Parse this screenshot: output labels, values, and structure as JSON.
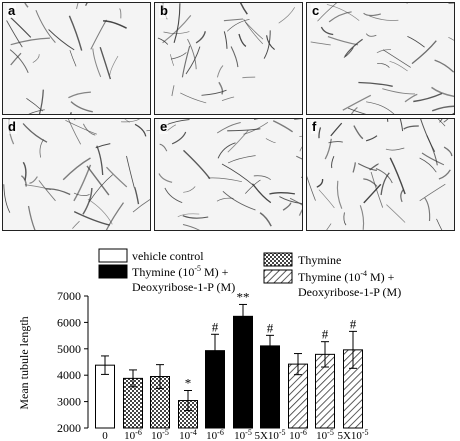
{
  "panels": [
    {
      "letter": "a"
    },
    {
      "letter": "b"
    },
    {
      "letter": "c"
    },
    {
      "letter": "d"
    },
    {
      "letter": "e"
    },
    {
      "letter": "f"
    }
  ],
  "chart_data": {
    "type": "bar",
    "ylabel": "Mean tubule length",
    "ylim": [
      2000,
      7000
    ],
    "yticks": [
      2000,
      3000,
      4000,
      5000,
      6000,
      7000
    ],
    "categories": [
      "0",
      "10-6",
      "10-5",
      "10-4",
      "10-6",
      "10-5",
      "5X10-5",
      "10-6",
      "10-5",
      "5X10-5"
    ],
    "category_labels": [
      {
        "base": "0",
        "exp": ""
      },
      {
        "base": "10",
        "exp": "-6"
      },
      {
        "base": "10",
        "exp": "-5"
      },
      {
        "base": "10",
        "exp": "-4"
      },
      {
        "base": "10",
        "exp": "-6"
      },
      {
        "base": "10",
        "exp": "-5"
      },
      {
        "base": "5X10",
        "exp": "-5"
      },
      {
        "base": "10",
        "exp": "-6"
      },
      {
        "base": "10",
        "exp": "-5"
      },
      {
        "base": "5X10",
        "exp": "-5"
      }
    ],
    "series": [
      {
        "name": "vehicle control",
        "pattern": "white",
        "indices": [
          0
        ]
      },
      {
        "name": "Thymine",
        "pattern": "crosshatch",
        "indices": [
          1,
          2,
          3
        ]
      },
      {
        "name": "Thymine (10-5 M) + Deoxyribose-1-P (M)",
        "pattern": "black",
        "indices": [
          4,
          5,
          6
        ]
      },
      {
        "name": "Thymine (10-4 M) + Deoxyribose-1-P (M)",
        "pattern": "diagonal",
        "indices": [
          7,
          8,
          9
        ]
      }
    ],
    "values": [
      4380,
      3880,
      3950,
      3040,
      4930,
      6230,
      5110,
      4420,
      4790,
      4960
    ],
    "errors": [
      350,
      320,
      450,
      380,
      620,
      450,
      400,
      400,
      480,
      700
    ],
    "annotations": [
      "",
      "",
      "",
      "*",
      "#",
      "**",
      "#",
      "",
      "#",
      "#"
    ],
    "legend": {
      "vehicle": "vehicle control",
      "thymine": "Thymine",
      "combo5_line1_pre": "Thymine (10",
      "combo5_exp": "-5",
      "combo5_line1_post": " M) +",
      "combo5_line2": "Deoxyribose-1-P (M)",
      "combo4_line1_pre": "Thymine (10",
      "combo4_exp": "-4",
      "combo4_line1_post": " M) +",
      "combo4_line2": "Deoxyribose-1-P (M)"
    },
    "colors": {
      "black": "#000000",
      "white": "#ffffff",
      "hatch": "#555555"
    }
  }
}
